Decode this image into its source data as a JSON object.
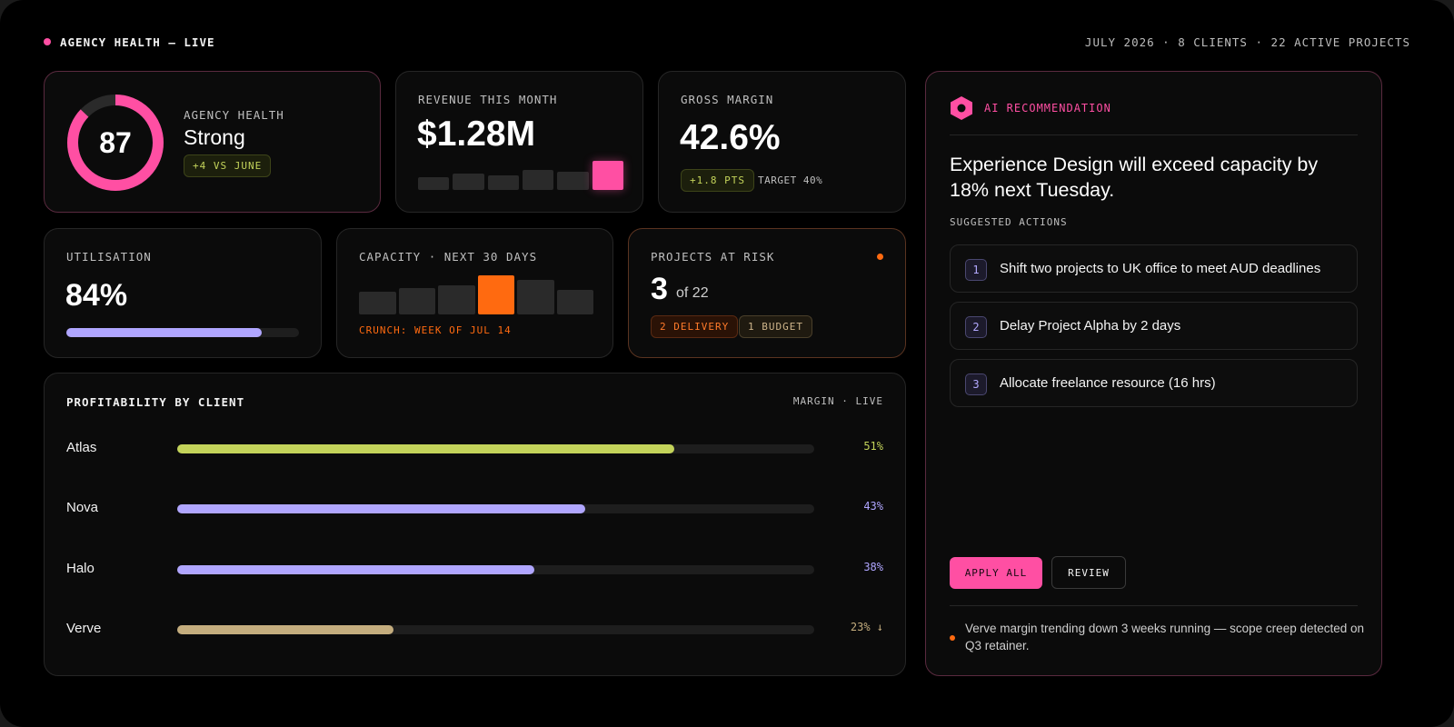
{
  "header": {
    "title": "AGENCY HEALTH — LIVE",
    "meta": "JULY 2026 · 8 CLIENTS · 22 ACTIVE PROJECTS"
  },
  "health": {
    "score": "87",
    "score_fraction": 0.87,
    "label": "AGENCY HEALTH",
    "status": "Strong",
    "delta": "+4 VS JUNE"
  },
  "revenue": {
    "label": "REVENUE THIS MONTH",
    "value": "$1.28M",
    "bar_levels": [
      0.36,
      0.48,
      0.43,
      0.58,
      0.53,
      0.85
    ]
  },
  "margin": {
    "label": "GROSS MARGIN",
    "value": "42.6%",
    "delta": "+1.8 PTS",
    "target": "TARGET 40%"
  },
  "utilisation": {
    "label": "UTILISATION",
    "value": "84%",
    "fraction": 0.84
  },
  "capacity": {
    "label": "CAPACITY · NEXT 30 DAYS",
    "bar_levels": [
      0.57,
      0.66,
      0.73,
      0.98,
      0.86,
      0.61
    ],
    "highlight_index": 3,
    "note": "CRUNCH: WEEK OF JUL 14"
  },
  "risk": {
    "label": "PROJECTS AT RISK",
    "count": "3",
    "of": "of 22",
    "delivery": "2 DELIVERY",
    "budget": "1 BUDGET"
  },
  "profitability": {
    "title": "PROFITABILITY BY CLIENT",
    "meta": "MARGIN · LIVE",
    "clients": [
      {
        "name": "Atlas",
        "pct": "51%",
        "fraction": 0.78,
        "color": "#c3d35a"
      },
      {
        "name": "Nova",
        "pct": "43%",
        "fraction": 0.64,
        "color": "#b0a6ff"
      },
      {
        "name": "Halo",
        "pct": "38%",
        "fraction": 0.56,
        "color": "#b0a6ff"
      },
      {
        "name": "Verve",
        "pct": "23% ↓",
        "fraction": 0.34,
        "color": "#c4ad7e"
      }
    ]
  },
  "ai": {
    "label": "AI RECOMMENDATION",
    "headline": "Experience Design will exceed capacity by 18% next Tuesday.",
    "actions_label": "SUGGESTED ACTIONS",
    "actions": [
      {
        "num": "1",
        "text": "Shift two projects to UK office to meet AUD deadlines"
      },
      {
        "num": "2",
        "text": "Delay Project Alpha by 2 days"
      },
      {
        "num": "3",
        "text": "Allocate freelance resource (16 hrs)"
      }
    ],
    "apply_label": "APPLY ALL",
    "review_label": "REVIEW",
    "alert": "Verve margin trending down 3 weeks running — scope creep detected on Q3 retainer."
  },
  "colors": {
    "pink": "#ff4fa3",
    "orange": "#ff6a10",
    "lime": "#c3d35a",
    "violet": "#b0a6ff",
    "tan": "#c4ad7e"
  }
}
